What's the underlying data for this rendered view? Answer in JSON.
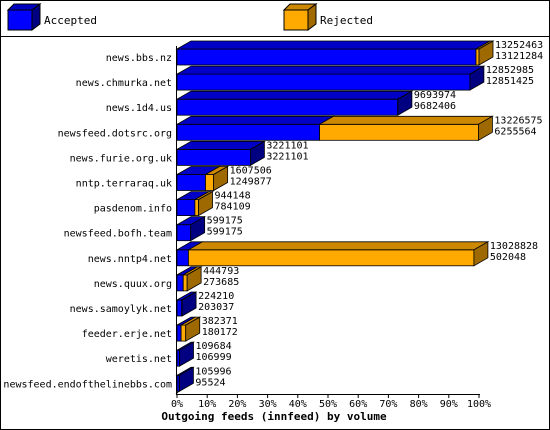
{
  "chart_data": {
    "type": "bar",
    "orientation": "horizontal",
    "stacked": true,
    "style": "3d",
    "title": "Outgoing feeds (innfeed) by volume",
    "xlabel": "",
    "ylabel": "",
    "xlim": [
      0,
      100
    ],
    "x_ticks": [
      "0%",
      "10%",
      "20%",
      "30%",
      "40%",
      "50%",
      "60%",
      "70%",
      "80%",
      "90%",
      "100%"
    ],
    "grid": false,
    "legend_position": "top",
    "series": [
      {
        "name": "Accepted",
        "color": "#0000ff"
      },
      {
        "name": "Rejected",
        "color": "#ffaa00"
      }
    ],
    "categories": [
      "news.bbs.nz",
      "news.chmurka.net",
      "news.1d4.us",
      "newsfeed.dotsrc.org",
      "news.furie.org.uk",
      "nntp.terraraq.uk",
      "pasdenom.info",
      "newsfeed.bofh.team",
      "news.nntp4.net",
      "news.quux.org",
      "news.samoylyk.net",
      "feeder.erje.net",
      "weretis.net",
      "newsfeed.endofthelinebbs.com"
    ],
    "offered": [
      13252463,
      12852985,
      9693974,
      13226575,
      3221101,
      1607506,
      944148,
      599175,
      13028828,
      444793,
      224210,
      382371,
      109684,
      105996
    ],
    "accepted": [
      13121284,
      12851425,
      9682406,
      6255564,
      3221101,
      1249877,
      784109,
      599175,
      502048,
      273685,
      203037,
      180172,
      106999,
      95524
    ]
  }
}
